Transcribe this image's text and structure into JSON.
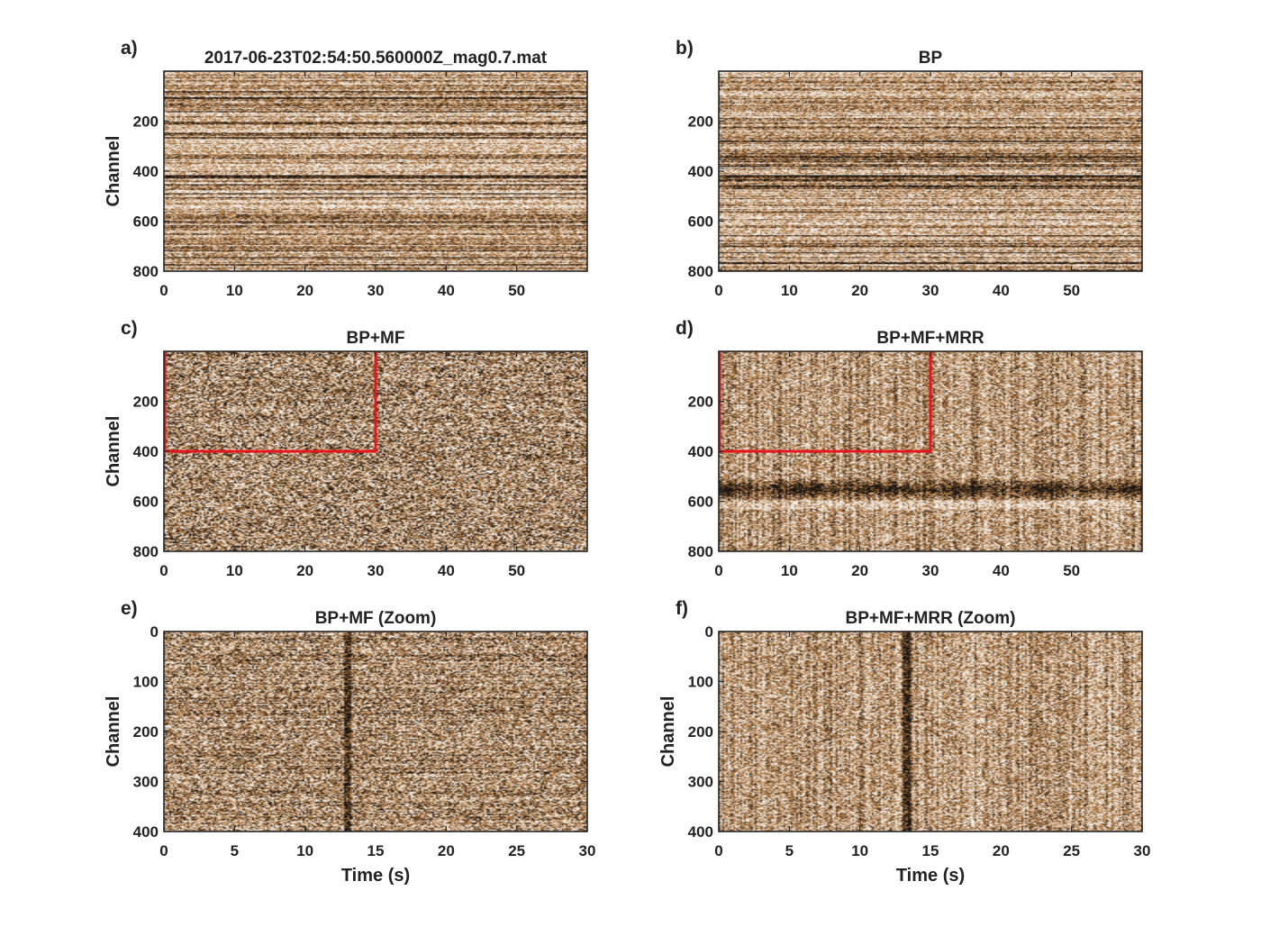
{
  "colors": {
    "background": "#ffffff",
    "seismic_dark": "#1a1410",
    "seismic_brown": "#b07a45",
    "seismic_light": "#f4efe8",
    "highlight_box": "#e8141b",
    "axis": "#262626"
  },
  "chart_data": [
    {
      "type": "heatmap",
      "panel": "a)",
      "title": "2017-06-23T02:54:50.560000Z_mag0.7.mat",
      "xlabel": "",
      "ylabel": "Channel",
      "xlim": [
        0,
        60
      ],
      "ylim": [
        0,
        800
      ],
      "y_reversed": true,
      "xticks": [
        0,
        10,
        20,
        30,
        40,
        50
      ],
      "yticks": [
        200,
        400,
        600,
        800
      ],
      "texture": "horizontal_stripes",
      "dark_bands": [
        420
      ],
      "highlight_box": null
    },
    {
      "type": "heatmap",
      "panel": "b)",
      "title": "BP",
      "xlabel": "",
      "ylabel": "",
      "xlim": [
        0,
        60
      ],
      "ylim": [
        0,
        800
      ],
      "y_reversed": true,
      "xticks": [
        0,
        10,
        20,
        30,
        40,
        50
      ],
      "yticks": [
        200,
        400,
        600,
        800
      ],
      "texture": "horizontal_stripes",
      "dark_bands": [
        420
      ],
      "highlight_box": null
    },
    {
      "type": "heatmap",
      "panel": "c)",
      "title": "BP+MF",
      "xlabel": "",
      "ylabel": "Channel",
      "xlim": [
        0,
        60
      ],
      "ylim": [
        0,
        800
      ],
      "y_reversed": true,
      "xticks": [
        0,
        10,
        20,
        30,
        40,
        50
      ],
      "yticks": [
        200,
        400,
        600,
        800
      ],
      "texture": "speckle",
      "dark_bands": [],
      "highlight_box": {
        "x": [
          0,
          30
        ],
        "y": [
          0,
          400
        ]
      }
    },
    {
      "type": "heatmap",
      "panel": "d)",
      "title": "BP+MF+MRR",
      "xlabel": "",
      "ylabel": "",
      "xlim": [
        0,
        60
      ],
      "ylim": [
        0,
        800
      ],
      "y_reversed": true,
      "xticks": [
        0,
        10,
        20,
        30,
        40,
        50
      ],
      "yticks": [
        200,
        400,
        600,
        800
      ],
      "texture": "vertical_streaks",
      "dark_bands": [
        550
      ],
      "highlight_box": {
        "x": [
          0,
          30
        ],
        "y": [
          0,
          400
        ]
      }
    },
    {
      "type": "heatmap",
      "panel": "e)",
      "title": "BP+MF (Zoom)",
      "xlabel": "Time (s)",
      "ylabel": "Channel",
      "xlim": [
        0,
        30
      ],
      "ylim": [
        0,
        400
      ],
      "y_reversed": true,
      "xticks": [
        0,
        5,
        10,
        15,
        20,
        25,
        30
      ],
      "yticks": [
        0,
        100,
        200,
        300,
        400
      ],
      "texture": "speckle_striped",
      "dark_bands": [],
      "event_time": 13,
      "highlight_box": null
    },
    {
      "type": "heatmap",
      "panel": "f)",
      "title": "BP+MF+MRR (Zoom)",
      "xlabel": "Time (s)",
      "ylabel": "Channel",
      "xlim": [
        0,
        30
      ],
      "ylim": [
        0,
        400
      ],
      "y_reversed": true,
      "xticks": [
        0,
        5,
        10,
        15,
        20,
        25,
        30
      ],
      "yticks": [
        0,
        100,
        200,
        300,
        400
      ],
      "texture": "vertical_streaks",
      "dark_bands": [],
      "event_time": 13.3,
      "highlight_box": null
    }
  ]
}
